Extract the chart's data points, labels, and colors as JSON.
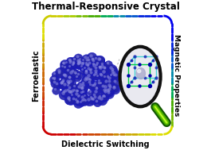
{
  "title_top": "Thermal-Responsive Crystal",
  "label_bottom": "Dielectric Switching",
  "label_left": "Ferroelastic",
  "label_right": "Magnetic Properties",
  "bg_color": "#ffffff",
  "top_colors": [
    "#cccc00",
    "#aacc00",
    "#77bb00",
    "#44aa00",
    "#00aa55",
    "#0088aa",
    "#0055cc",
    "#0022dd",
    "#0000ee"
  ],
  "bottom_colors": [
    "#cc0000",
    "#cc0000",
    "#cc2200",
    "#cc4400",
    "#cc6600",
    "#cc8800",
    "#ccaa00",
    "#cccc00",
    "#dddd00"
  ],
  "left_colors": [
    "#dddd00",
    "#ccaa00",
    "#cc8800",
    "#cc6600",
    "#cc4400",
    "#cc2200",
    "#cc0000"
  ],
  "right_colors": [
    "#0000ee",
    "#0022dd",
    "#0055cc",
    "#0088aa",
    "#00aa55",
    "#44aa00",
    "#77bb00"
  ],
  "title_fontsize": 8.5,
  "label_fontsize": 7.0,
  "figsize": [
    2.65,
    1.89
  ],
  "dpi": 100
}
